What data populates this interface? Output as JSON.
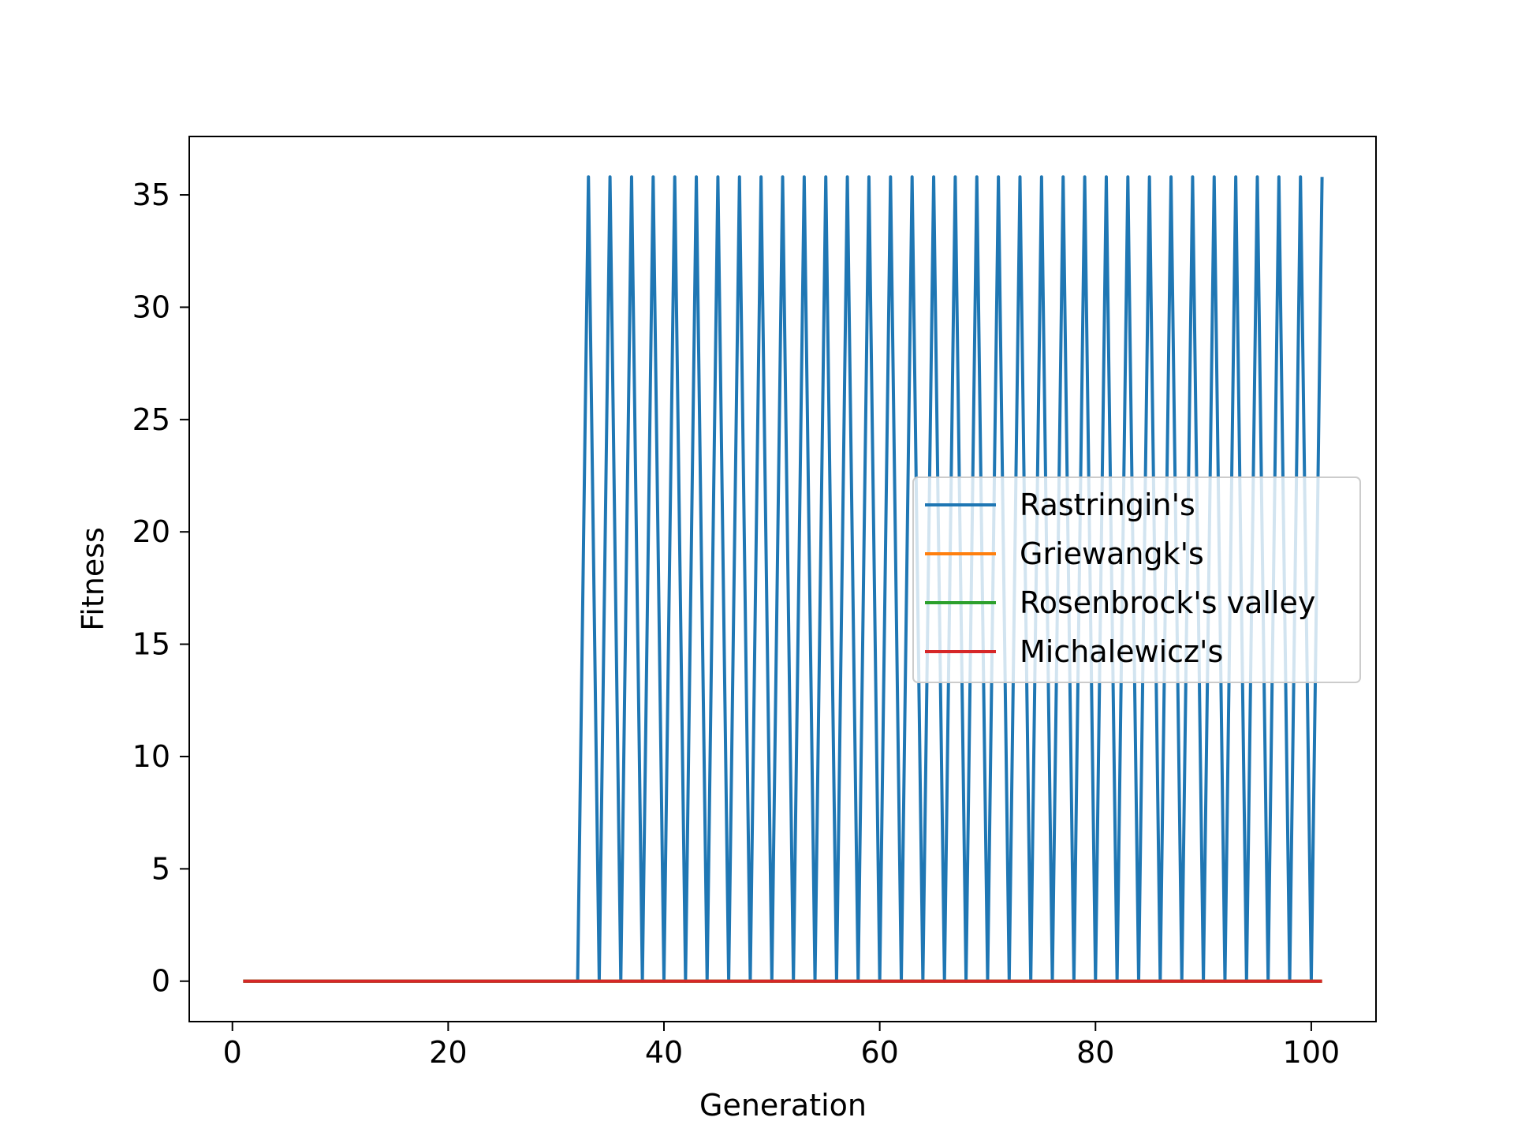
{
  "chart_data": {
    "type": "line",
    "title": "",
    "xlabel": "Generation",
    "ylabel": "Fitness",
    "xlim": [
      -4,
      106
    ],
    "ylim": [
      -1.8,
      37.6
    ],
    "xticks": [
      0,
      20,
      40,
      60,
      80,
      100
    ],
    "yticks": [
      0,
      5,
      10,
      15,
      20,
      25,
      30,
      35
    ],
    "grid": false,
    "legend_position": "center-right",
    "rastrigin_pattern": {
      "generations": [
        1,
        101
      ],
      "flat_until": 32,
      "alternate_values": [
        0,
        35.8
      ]
    },
    "series": [
      {
        "name": "Rastringin's",
        "color": "#1f77b4"
      },
      {
        "name": "Griewangk's",
        "color": "#ff7f0e",
        "value": 0
      },
      {
        "name": "Rosenbrock's valley",
        "color": "#2ca02c",
        "value": 0
      },
      {
        "name": "Michalewicz's",
        "color": "#d62728",
        "value": 0
      }
    ]
  }
}
